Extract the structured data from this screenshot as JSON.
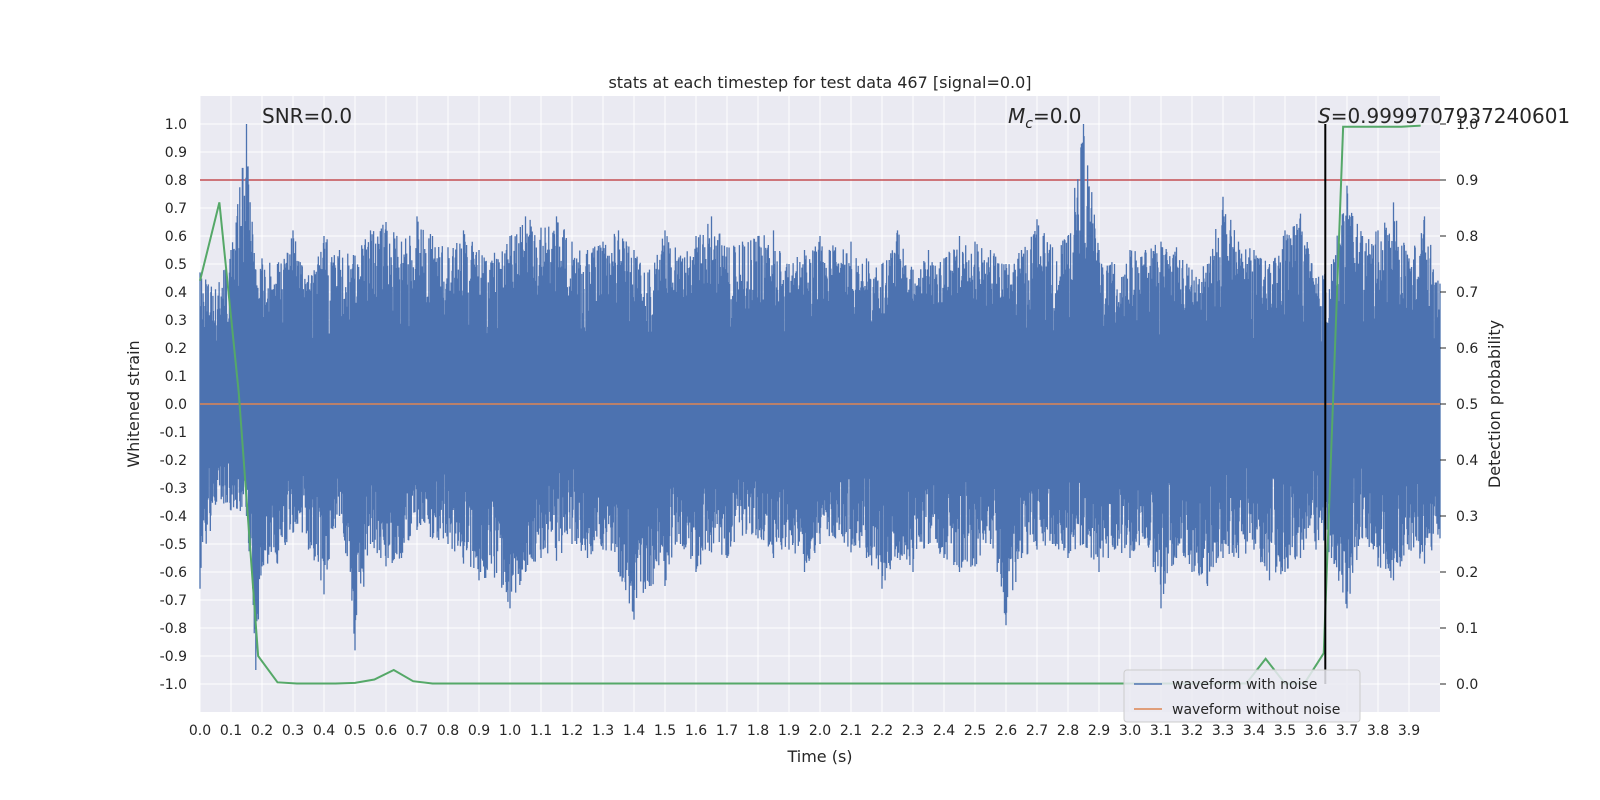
{
  "chart_data": {
    "type": "line",
    "title": "stats at each timestep for test data 467 [signal=0.0]",
    "xlabel": "Time (s)",
    "ylabel": "Whitened strain",
    "ylabel_right": "Detection probability",
    "xlim": [
      0.0,
      4.0
    ],
    "ylim": [
      -1.1,
      1.1
    ],
    "ylim_right": [
      -0.05,
      1.05
    ],
    "x_ticks": [
      "0.0",
      "0.1",
      "0.2",
      "0.3",
      "0.4",
      "0.5",
      "0.6",
      "0.7",
      "0.8",
      "0.9",
      "1.0",
      "1.1",
      "1.2",
      "1.3",
      "1.4",
      "1.5",
      "1.6",
      "1.7",
      "1.8",
      "1.9",
      "2.0",
      "2.1",
      "2.2",
      "2.3",
      "2.4",
      "2.5",
      "2.6",
      "2.7",
      "2.8",
      "2.9",
      "3.0",
      "3.1",
      "3.2",
      "3.3",
      "3.4",
      "3.5",
      "3.6",
      "3.7",
      "3.8",
      "3.9"
    ],
    "y_ticks": [
      "1.0",
      "0.9",
      "0.8",
      "0.7",
      "0.6",
      "0.5",
      "0.4",
      "0.3",
      "0.2",
      "0.1",
      "0.0",
      "-0.1",
      "-0.2",
      "-0.3",
      "-0.4",
      "-0.5",
      "-0.6",
      "-0.7",
      "-0.8",
      "-0.9",
      "-1.0"
    ],
    "y_ticks_right": [
      "1.0",
      "0.9",
      "0.8",
      "0.7",
      "0.6",
      "0.5",
      "0.4",
      "0.3",
      "0.2",
      "0.1",
      "0.0"
    ],
    "annotations": {
      "snr": "SNR=0.0",
      "mc": "=0.0",
      "mc_symbol": "M",
      "mc_sub": "c",
      "s": "=0.9999707937240601",
      "s_symbol": "S"
    },
    "series": [
      {
        "name": "waveform with noise",
        "color": "#4c72b0",
        "axis": "left",
        "envelope": [
          [
            0.0,
            -0.66,
            0.47
          ],
          [
            0.05,
            -0.36,
            0.41
          ],
          [
            0.1,
            -0.38,
            0.55
          ],
          [
            0.15,
            -0.4,
            1.0
          ],
          [
            0.18,
            -0.95,
            0.48
          ],
          [
            0.2,
            -0.58,
            0.52
          ],
          [
            0.25,
            -0.57,
            0.5
          ],
          [
            0.3,
            -0.46,
            0.62
          ],
          [
            0.35,
            -0.52,
            0.46
          ],
          [
            0.4,
            -0.68,
            0.6
          ],
          [
            0.45,
            -0.4,
            0.55
          ],
          [
            0.5,
            -0.88,
            0.53
          ],
          [
            0.55,
            -0.5,
            0.62
          ],
          [
            0.6,
            -0.58,
            0.65
          ],
          [
            0.65,
            -0.55,
            0.58
          ],
          [
            0.7,
            -0.45,
            0.67
          ],
          [
            0.75,
            -0.48,
            0.6
          ],
          [
            0.8,
            -0.5,
            0.56
          ],
          [
            0.85,
            -0.57,
            0.62
          ],
          [
            0.9,
            -0.63,
            0.55
          ],
          [
            0.95,
            -0.62,
            0.54
          ],
          [
            1.0,
            -0.73,
            0.6
          ],
          [
            1.05,
            -0.6,
            0.67
          ],
          [
            1.1,
            -0.55,
            0.63
          ],
          [
            1.15,
            -0.56,
            0.67
          ],
          [
            1.2,
            -0.5,
            0.58
          ],
          [
            1.25,
            -0.55,
            0.55
          ],
          [
            1.3,
            -0.52,
            0.58
          ],
          [
            1.35,
            -0.6,
            0.62
          ],
          [
            1.4,
            -0.77,
            0.55
          ],
          [
            1.45,
            -0.65,
            0.48
          ],
          [
            1.5,
            -0.65,
            0.62
          ],
          [
            1.55,
            -0.5,
            0.53
          ],
          [
            1.6,
            -0.6,
            0.6
          ],
          [
            1.65,
            -0.53,
            0.67
          ],
          [
            1.7,
            -0.55,
            0.56
          ],
          [
            1.75,
            -0.47,
            0.58
          ],
          [
            1.8,
            -0.48,
            0.6
          ],
          [
            1.85,
            -0.55,
            0.62
          ],
          [
            1.9,
            -0.52,
            0.5
          ],
          [
            1.95,
            -0.6,
            0.55
          ],
          [
            2.0,
            -0.5,
            0.6
          ],
          [
            2.05,
            -0.48,
            0.56
          ],
          [
            2.1,
            -0.53,
            0.58
          ],
          [
            2.15,
            -0.55,
            0.52
          ],
          [
            2.2,
            -0.66,
            0.5
          ],
          [
            2.25,
            -0.55,
            0.62
          ],
          [
            2.3,
            -0.6,
            0.48
          ],
          [
            2.35,
            -0.5,
            0.55
          ],
          [
            2.4,
            -0.55,
            0.52
          ],
          [
            2.45,
            -0.6,
            0.6
          ],
          [
            2.5,
            -0.58,
            0.58
          ],
          [
            2.55,
            -0.5,
            0.55
          ],
          [
            2.6,
            -0.79,
            0.5
          ],
          [
            2.65,
            -0.55,
            0.55
          ],
          [
            2.7,
            -0.52,
            0.66
          ],
          [
            2.75,
            -0.5,
            0.56
          ],
          [
            2.8,
            -0.55,
            0.6
          ],
          [
            2.85,
            -0.5,
            1.0
          ],
          [
            2.9,
            -0.6,
            0.55
          ],
          [
            2.95,
            -0.52,
            0.5
          ],
          [
            3.0,
            -0.55,
            0.55
          ],
          [
            3.05,
            -0.48,
            0.55
          ],
          [
            3.1,
            -0.73,
            0.58
          ],
          [
            3.15,
            -0.55,
            0.56
          ],
          [
            3.2,
            -0.6,
            0.48
          ],
          [
            3.25,
            -0.65,
            0.5
          ],
          [
            3.3,
            -0.55,
            0.74
          ],
          [
            3.35,
            -0.55,
            0.58
          ],
          [
            3.4,
            -0.52,
            0.55
          ],
          [
            3.45,
            -0.63,
            0.5
          ],
          [
            3.5,
            -0.6,
            0.62
          ],
          [
            3.55,
            -0.55,
            0.68
          ],
          [
            3.6,
            -0.52,
            0.45
          ],
          [
            3.65,
            -0.55,
            0.5
          ],
          [
            3.7,
            -0.73,
            0.78
          ],
          [
            3.75,
            -0.48,
            0.6
          ],
          [
            3.8,
            -0.58,
            0.62
          ],
          [
            3.85,
            -0.63,
            0.72
          ],
          [
            3.9,
            -0.52,
            0.52
          ],
          [
            3.95,
            -0.57,
            0.67
          ],
          [
            4.0,
            -0.48,
            0.43
          ]
        ]
      },
      {
        "name": "waveform without noise",
        "color": "#dd8452",
        "axis": "left",
        "x": [
          0.0,
          4.0
        ],
        "y": [
          0.0,
          0.0
        ]
      },
      {
        "name": "detection probability",
        "color": "#55a868",
        "axis": "right",
        "x": [
          0.0,
          0.0625,
          0.125,
          0.1875,
          0.25,
          0.3125,
          0.375,
          0.4375,
          0.5,
          0.5625,
          0.625,
          0.6875,
          0.75,
          0.8125,
          0.875,
          0.9375,
          1.0,
          1.0625,
          1.125,
          1.1875,
          1.25,
          1.3125,
          1.375,
          1.4375,
          1.5,
          1.5625,
          1.625,
          1.6875,
          1.75,
          1.8125,
          1.875,
          1.9375,
          2.0,
          2.0625,
          2.125,
          2.1875,
          2.25,
          2.3125,
          2.375,
          2.4375,
          2.5,
          2.5625,
          2.625,
          2.6875,
          2.75,
          2.8125,
          2.875,
          2.9375,
          3.0,
          3.0625,
          3.125,
          3.1875,
          3.25,
          3.3125,
          3.375,
          3.4375,
          3.5,
          3.5625,
          3.625,
          3.6875,
          3.75,
          3.8125,
          3.875,
          3.9375
        ],
        "y": [
          0.72,
          0.86,
          0.52,
          0.05,
          0.003,
          0.001,
          0.001,
          0.001,
          0.002,
          0.008,
          0.025,
          0.005,
          0.001,
          0.001,
          0.001,
          0.001,
          0.001,
          0.001,
          0.001,
          0.001,
          0.001,
          0.001,
          0.001,
          0.001,
          0.001,
          0.001,
          0.001,
          0.001,
          0.001,
          0.001,
          0.001,
          0.001,
          0.001,
          0.001,
          0.001,
          0.001,
          0.001,
          0.001,
          0.001,
          0.001,
          0.001,
          0.001,
          0.001,
          0.001,
          0.001,
          0.001,
          0.001,
          0.001,
          0.001,
          0.001,
          0.001,
          0.001,
          0.001,
          0.001,
          0.001,
          0.045,
          0.001,
          0.001,
          0.055,
          0.995,
          0.995,
          0.995,
          0.995,
          0.997
        ]
      }
    ],
    "reference_lines": [
      {
        "name": "threshold",
        "axis": "right",
        "orientation": "horizontal",
        "value": 0.9,
        "color": "#c44e52"
      },
      {
        "name": "trigger-time",
        "axis": "x",
        "orientation": "vertical",
        "value": 3.63,
        "color": "#000000"
      }
    ],
    "legend": {
      "position": "lower-right",
      "entries": [
        "waveform with noise",
        "waveform without noise"
      ]
    },
    "grid": true
  }
}
